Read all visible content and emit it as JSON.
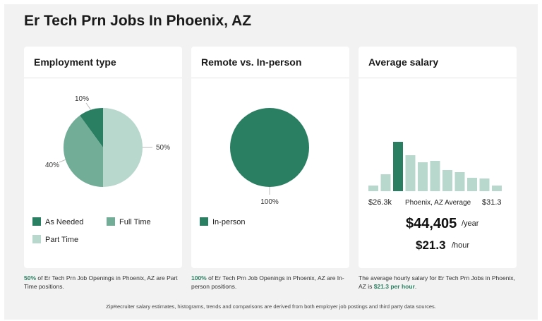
{
  "page": {
    "title": "Er Tech Prn Jobs In Phoenix, AZ"
  },
  "cards": {
    "employment": {
      "title": "Employment type",
      "footnote": {
        "pct": "50%",
        "text": " of Er Tech Prn Job Openings in Phoenix, AZ are Part Time positions."
      }
    },
    "remote": {
      "title": "Remote vs. In-person",
      "footnote": {
        "pct": "100%",
        "text": " of Er Tech Prn Job Openings in Phoenix, AZ are In-person positions."
      }
    },
    "salary": {
      "title": "Average salary",
      "min_label": "$26.3k",
      "location_label": "Phoenix, AZ Average",
      "max_label": "$31.3",
      "yearly_value": "$44,405",
      "yearly_unit": "/year",
      "hourly_value": "$21.3",
      "hourly_unit": "/hour",
      "footnote": {
        "text": "The average hourly salary for Er Tech Prn Jobs in Phoenix, AZ is ",
        "value": "$21.3 per hour",
        "end": "."
      }
    }
  },
  "bottom_note": "ZipRecruiter salary estimates, histograms, trends and comparisons are derived from both employer job postings and third party data sources.",
  "colors": {
    "dark": "#2a7f62",
    "medium": "#72ad98",
    "light": "#b9d8cd"
  },
  "chart_data": [
    {
      "type": "pie",
      "labels": [
        "As Needed",
        "Full Time",
        "Part Time"
      ],
      "values": [
        10,
        40,
        50
      ],
      "value_labels": [
        "10%",
        "40%",
        "50%"
      ],
      "colors": [
        "#2a7f62",
        "#72ad98",
        "#b9d8cd"
      ],
      "legend_position": "bottom"
    },
    {
      "type": "pie",
      "labels": [
        "In-person"
      ],
      "values": [
        100
      ],
      "value_labels": [
        "100%"
      ],
      "colors": [
        "#2a7f62"
      ],
      "legend_position": "bottom"
    },
    {
      "type": "bar",
      "values": [
        8,
        24,
        70,
        51,
        41,
        43,
        30,
        27,
        19,
        18,
        8
      ],
      "highlight_index": 2,
      "ylim": [
        0,
        70
      ],
      "grid": false
    }
  ]
}
